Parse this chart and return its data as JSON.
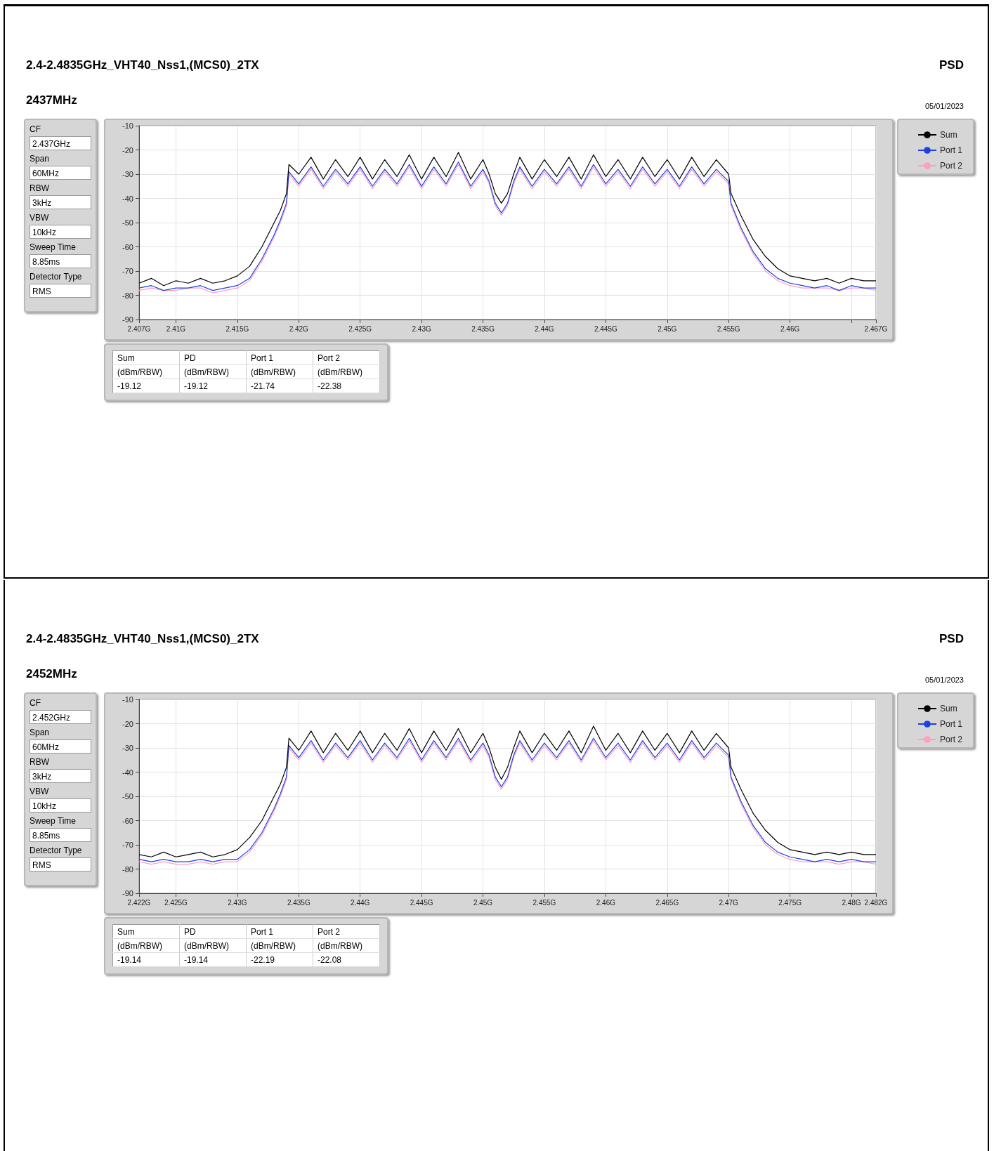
{
  "chart_data": [
    {
      "type": "line",
      "title": "2.4-2.4835GHz_VHT40_Nss1,(MCS0)_2TX",
      "subtitle": "2437MHz",
      "annotations": [
        "PSD",
        "05/01/2023"
      ],
      "legend": "right",
      "grid": true,
      "marker": "none",
      "line_style": "solid",
      "xlim": [
        2.407,
        2.467
      ],
      "xticks": [
        {
          "value": 2.407,
          "label": "2.407G"
        },
        {
          "value": 2.41,
          "label": "2.41G"
        },
        {
          "value": 2.415,
          "label": "2.415G"
        },
        {
          "value": 2.42,
          "label": "2.42G"
        },
        {
          "value": 2.425,
          "label": "2.425G"
        },
        {
          "value": 2.43,
          "label": "2.43G"
        },
        {
          "value": 2.435,
          "label": "2.435G"
        },
        {
          "value": 2.44,
          "label": "2.44G"
        },
        {
          "value": 2.445,
          "label": "2.445G"
        },
        {
          "value": 2.45,
          "label": "2.45G"
        },
        {
          "value": 2.455,
          "label": "2.455G"
        },
        {
          "value": 2.46,
          "label": "2.46G"
        },
        {
          "value": 2.465,
          "label": null
        },
        {
          "value": 2.467,
          "label": "2.467G"
        }
      ],
      "ylim": [
        -90,
        -10
      ],
      "yticks": [
        -90,
        -80,
        -70,
        -60,
        -50,
        -40,
        -30,
        -20,
        -10
      ],
      "x": [
        2.407,
        2.408,
        2.409,
        2.41,
        2.411,
        2.412,
        2.413,
        2.414,
        2.415,
        2.416,
        2.417,
        2.418,
        2.4185,
        2.419,
        2.4192,
        2.42,
        2.421,
        2.422,
        2.423,
        2.424,
        2.425,
        2.426,
        2.427,
        2.428,
        2.429,
        2.43,
        2.431,
        2.432,
        2.433,
        2.434,
        2.435,
        2.4355,
        2.436,
        2.4365,
        2.437,
        2.4375,
        2.438,
        2.439,
        2.44,
        2.441,
        2.442,
        2.443,
        2.444,
        2.445,
        2.446,
        2.447,
        2.448,
        2.449,
        2.45,
        2.451,
        2.452,
        2.453,
        2.454,
        2.455,
        2.4552,
        2.456,
        2.457,
        2.458,
        2.459,
        2.46,
        2.461,
        2.462,
        2.463,
        2.464,
        2.465,
        2.466,
        2.467
      ],
      "series": [
        {
          "name": "Sum",
          "color": "#000000",
          "values": [
            -75,
            -73,
            -76,
            -74,
            -75,
            -73,
            -75,
            -74,
            -72,
            -68,
            -60,
            -50,
            -45,
            -38,
            -26,
            -30,
            -23,
            -32,
            -24,
            -31,
            -23,
            -32,
            -24,
            -31,
            -22,
            -32,
            -23,
            -31,
            -21,
            -32,
            -24,
            -30,
            -38,
            -42,
            -38,
            -30,
            -23,
            -32,
            -24,
            -31,
            -23,
            -32,
            -22,
            -31,
            -24,
            -32,
            -23,
            -31,
            -24,
            -32,
            -23,
            -31,
            -24,
            -30,
            -38,
            -47,
            -57,
            -64,
            -69,
            -72,
            -73,
            -74,
            -73,
            -75,
            -73,
            -74,
            -74
          ]
        },
        {
          "name": "Port 1",
          "color": "#1f3fe0",
          "values": [
            -77,
            -76,
            -78,
            -77,
            -77,
            -76,
            -78,
            -77,
            -76,
            -73,
            -65,
            -55,
            -49,
            -42,
            -29,
            -34,
            -27,
            -35,
            -28,
            -34,
            -27,
            -35,
            -28,
            -34,
            -26,
            -35,
            -27,
            -34,
            -25,
            -35,
            -28,
            -33,
            -42,
            -46,
            -42,
            -33,
            -27,
            -35,
            -28,
            -34,
            -27,
            -35,
            -26,
            -34,
            -28,
            -35,
            -27,
            -34,
            -28,
            -35,
            -27,
            -34,
            -28,
            -33,
            -42,
            -52,
            -62,
            -69,
            -73,
            -75,
            -76,
            -77,
            -76,
            -78,
            -76,
            -77,
            -77
          ]
        },
        {
          "name": "Port 2",
          "color": "#ff9ec8",
          "values": [
            -78,
            -77,
            -78,
            -78,
            -77,
            -77,
            -79,
            -78,
            -77,
            -74,
            -66,
            -56,
            -50,
            -43,
            -30,
            -35,
            -28,
            -36,
            -29,
            -35,
            -28,
            -36,
            -29,
            -35,
            -27,
            -36,
            -28,
            -35,
            -26,
            -36,
            -29,
            -34,
            -43,
            -47,
            -43,
            -34,
            -28,
            -36,
            -29,
            -35,
            -28,
            -36,
            -27,
            -35,
            -29,
            -36,
            -28,
            -35,
            -29,
            -36,
            -28,
            -35,
            -29,
            -34,
            -43,
            -53,
            -63,
            -70,
            -74,
            -76,
            -77,
            -77,
            -77,
            -78,
            -77,
            -77,
            -78
          ]
        }
      ]
    },
    {
      "type": "other",
      "annotations": [
        "CF",
        "2.437GHz",
        "Span",
        "60MHz",
        "RBW",
        "3kHz",
        "VBW",
        "10kHz",
        "Sweep Time",
        "8.85ms",
        "Detector Type",
        "RMS"
      ]
    },
    {
      "type": "other",
      "categories": [
        "Sum",
        "PD",
        "Port 1",
        "Port 2"
      ],
      "annotations": [
        "(dBm/RBW)",
        "(dBm/RBW)",
        "(dBm/RBW)",
        "(dBm/RBW)"
      ],
      "values": [
        -19.12,
        -19.12,
        -21.74,
        -22.38
      ],
      "data_labels": true
    },
    {
      "type": "line",
      "title": "2.4-2.4835GHz_VHT40_Nss1,(MCS0)_2TX",
      "subtitle": "2452MHz",
      "annotations": [
        "PSD",
        "05/01/2023"
      ],
      "legend": "right",
      "grid": true,
      "marker": "none",
      "line_style": "solid",
      "xlim": [
        2.422,
        2.482
      ],
      "xticks": [
        {
          "value": 2.422,
          "label": "2.422G"
        },
        {
          "value": 2.425,
          "label": "2.425G"
        },
        {
          "value": 2.43,
          "label": "2.43G"
        },
        {
          "value": 2.435,
          "label": "2.435G"
        },
        {
          "value": 2.44,
          "label": "2.44G"
        },
        {
          "value": 2.445,
          "label": "2.445G"
        },
        {
          "value": 2.45,
          "label": "2.45G"
        },
        {
          "value": 2.455,
          "label": "2.455G"
        },
        {
          "value": 2.46,
          "label": "2.46G"
        },
        {
          "value": 2.465,
          "label": "2.465G"
        },
        {
          "value": 2.47,
          "label": "2.47G"
        },
        {
          "value": 2.475,
          "label": "2.475G"
        },
        {
          "value": 2.48,
          "label": "2.48G"
        },
        {
          "value": 2.482,
          "label": "2.482G"
        }
      ],
      "ylim": [
        -90,
        -10
      ],
      "yticks": [
        -90,
        -80,
        -70,
        -60,
        -50,
        -40,
        -30,
        -20,
        -10
      ],
      "x": [
        2.422,
        2.423,
        2.424,
        2.425,
        2.426,
        2.427,
        2.428,
        2.429,
        2.43,
        2.431,
        2.432,
        2.433,
        2.4335,
        2.434,
        2.4342,
        2.435,
        2.436,
        2.437,
        2.438,
        2.439,
        2.44,
        2.441,
        2.442,
        2.443,
        2.444,
        2.445,
        2.446,
        2.447,
        2.448,
        2.449,
        2.45,
        2.4505,
        2.451,
        2.4515,
        2.452,
        2.4525,
        2.453,
        2.454,
        2.455,
        2.456,
        2.457,
        2.458,
        2.459,
        2.46,
        2.461,
        2.462,
        2.463,
        2.464,
        2.465,
        2.466,
        2.467,
        2.468,
        2.469,
        2.47,
        2.4702,
        2.471,
        2.472,
        2.473,
        2.474,
        2.475,
        2.476,
        2.477,
        2.478,
        2.479,
        2.48,
        2.481,
        2.482
      ],
      "series": [
        {
          "name": "Sum",
          "color": "#000000",
          "values": [
            -74,
            -75,
            -73,
            -75,
            -74,
            -73,
            -75,
            -74,
            -72,
            -67,
            -60,
            -50,
            -45,
            -38,
            -26,
            -31,
            -23,
            -32,
            -24,
            -31,
            -23,
            -32,
            -24,
            -31,
            -22,
            -32,
            -23,
            -31,
            -22,
            -32,
            -24,
            -30,
            -38,
            -43,
            -38,
            -30,
            -23,
            -32,
            -24,
            -31,
            -23,
            -32,
            -21,
            -31,
            -24,
            -32,
            -23,
            -31,
            -24,
            -32,
            -23,
            -31,
            -24,
            -30,
            -38,
            -47,
            -57,
            -64,
            -69,
            -72,
            -73,
            -74,
            -73,
            -74,
            -73,
            -74,
            -74
          ]
        },
        {
          "name": "Port 1",
          "color": "#1f3fe0",
          "values": [
            -76,
            -77,
            -76,
            -77,
            -77,
            -76,
            -77,
            -76,
            -76,
            -72,
            -65,
            -55,
            -49,
            -42,
            -29,
            -34,
            -27,
            -35,
            -28,
            -34,
            -27,
            -35,
            -28,
            -34,
            -26,
            -35,
            -27,
            -34,
            -26,
            -35,
            -28,
            -33,
            -42,
            -46,
            -42,
            -33,
            -27,
            -35,
            -28,
            -34,
            -27,
            -35,
            -26,
            -34,
            -28,
            -35,
            -27,
            -34,
            -28,
            -35,
            -27,
            -34,
            -28,
            -33,
            -42,
            -52,
            -62,
            -69,
            -73,
            -75,
            -76,
            -77,
            -76,
            -77,
            -76,
            -77,
            -77
          ]
        },
        {
          "name": "Port 2",
          "color": "#ff9ec8",
          "values": [
            -77,
            -78,
            -77,
            -78,
            -78,
            -77,
            -78,
            -77,
            -77,
            -73,
            -66,
            -56,
            -50,
            -43,
            -30,
            -35,
            -28,
            -36,
            -29,
            -35,
            -28,
            -36,
            -29,
            -35,
            -27,
            -36,
            -28,
            -35,
            -27,
            -36,
            -29,
            -34,
            -43,
            -47,
            -43,
            -34,
            -28,
            -36,
            -29,
            -35,
            -28,
            -36,
            -27,
            -35,
            -29,
            -36,
            -28,
            -35,
            -29,
            -36,
            -28,
            -35,
            -29,
            -34,
            -43,
            -53,
            -63,
            -70,
            -74,
            -76,
            -77,
            -77,
            -77,
            -78,
            -77,
            -77,
            -78
          ]
        }
      ]
    },
    {
      "type": "other",
      "annotations": [
        "CF",
        "2.452GHz",
        "Span",
        "60MHz",
        "RBW",
        "3kHz",
        "VBW",
        "10kHz",
        "Sweep Time",
        "8.85ms",
        "Detector Type",
        "RMS"
      ]
    },
    {
      "type": "other",
      "categories": [
        "Sum",
        "PD",
        "Port 1",
        "Port 2"
      ],
      "annotations": [
        "(dBm/RBW)",
        "(dBm/RBW)",
        "(dBm/RBW)",
        "(dBm/RBW)"
      ],
      "values": [
        -19.14,
        -19.14,
        -22.19,
        -22.08
      ],
      "data_labels": true
    }
  ]
}
